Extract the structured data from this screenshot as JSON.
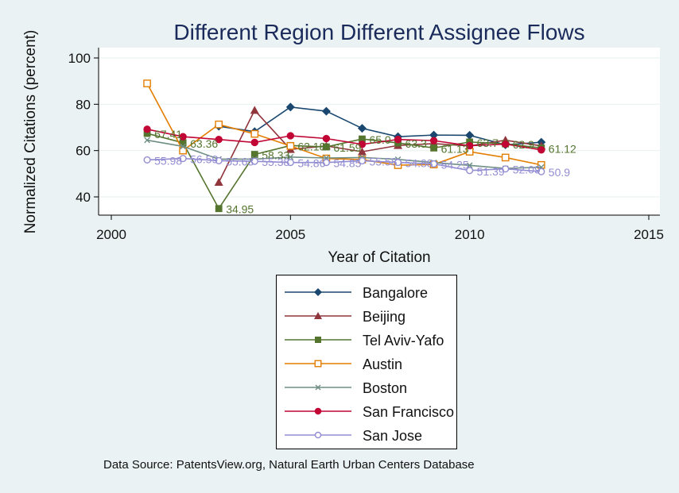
{
  "chart_data": {
    "type": "line",
    "title": "Different Region Different Assignee Flows",
    "xlabel": "Year of Citation",
    "ylabel": "Normalized Citations (percent)",
    "xlim": [
      2000,
      2015
    ],
    "ylim": [
      30,
      104
    ],
    "xticks": [
      2000,
      2005,
      2010,
      2015
    ],
    "yticks": [
      40,
      60,
      80,
      100
    ],
    "grid": "horizontal",
    "legend_position": "below",
    "source": "Data Source: PatentsView.org, Natural Earth Urban Centers Database",
    "series": [
      {
        "name": "Bangalore",
        "color": "#1a476f",
        "marker": "diamond",
        "x": [
          2003,
          2004,
          2005,
          2006,
          2007,
          2008,
          2009,
          2010,
          2011,
          2012
        ],
        "y": [
          70.5,
          68.2,
          78.8,
          77.0,
          69.6,
          66.0,
          66.7,
          66.6,
          62.5,
          63.6
        ],
        "labels": []
      },
      {
        "name": "Beijing",
        "color": "#90353b",
        "marker": "triangle",
        "x": [
          2003,
          2004,
          2005,
          2006,
          2007,
          2008,
          2009,
          2010,
          2011,
          2012
        ],
        "y": [
          46.3,
          77.4,
          60.5,
          62.0,
          59.5,
          62.2,
          63.0,
          62.0,
          64.5,
          62.0
        ],
        "labels": []
      },
      {
        "name": "Tel Aviv-Yafo",
        "color": "#55752f",
        "marker": "square",
        "x": [
          2001,
          2002,
          2003,
          2004,
          2005,
          2006,
          2007,
          2008,
          2009,
          2010,
          2011,
          2012
        ],
        "y": [
          67.41,
          63.36,
          34.95,
          58.33,
          62.18,
          61.59,
          65.0,
          63.3,
          61.13,
          63.7,
          62.9,
          61.12
        ],
        "labels": [
          "67.41",
          "63.36",
          "34.95",
          "58.33",
          "62.18",
          "61.59",
          "65.0",
          "63.3",
          "61.13",
          "63.7",
          "62.9",
          "61.12"
        ]
      },
      {
        "name": "Austin",
        "color": "#e37e00",
        "marker": "hollow-square",
        "x": [
          2001,
          2002,
          2003,
          2004,
          2005,
          2006,
          2007,
          2008,
          2009,
          2010,
          2011,
          2012
        ],
        "y": [
          89.0,
          60.0,
          71.3,
          67.2,
          62.0,
          56.6,
          56.1,
          53.7,
          54.0,
          59.5,
          57.0,
          53.8
        ],
        "labels": []
      },
      {
        "name": "Boston",
        "color": "#6e8e84",
        "marker": "x",
        "x": [
          2001,
          2002,
          2003,
          2004,
          2005,
          2006,
          2007,
          2008,
          2009,
          2010,
          2011,
          2012
        ],
        "y": [
          64.5,
          61.8,
          56.3,
          56.3,
          57.2,
          56.8,
          57.0,
          56.2,
          54.8,
          53.6,
          52.3,
          52.8
        ],
        "labels": []
      },
      {
        "name": "San Francisco",
        "color": "#c10534",
        "marker": "circle",
        "x": [
          2001,
          2002,
          2003,
          2004,
          2005,
          2006,
          2007,
          2008,
          2009,
          2010,
          2011,
          2012
        ],
        "y": [
          69.2,
          66.0,
          64.8,
          63.5,
          66.4,
          65.2,
          62.7,
          64.8,
          64.3,
          62.1,
          62.8,
          60.3
        ],
        "labels": []
      },
      {
        "name": "San Jose",
        "color": "#938dd2",
        "marker": "hollow-circle",
        "x": [
          2001,
          2002,
          2003,
          2004,
          2005,
          2006,
          2007,
          2008,
          2009,
          2010,
          2011,
          2012
        ],
        "y": [
          55.98,
          56.59,
          55.63,
          55.38,
          54.86,
          54.85,
          55.58,
          54.88,
          54.25,
          51.39,
          52.09,
          50.9
        ],
        "labels": [
          "55.98",
          "56.59",
          "55.63",
          "55.38",
          "54.86",
          "54.85",
          "55.58",
          "54.88",
          "54.25",
          "51.39",
          "52.09",
          "50.9"
        ]
      }
    ]
  }
}
